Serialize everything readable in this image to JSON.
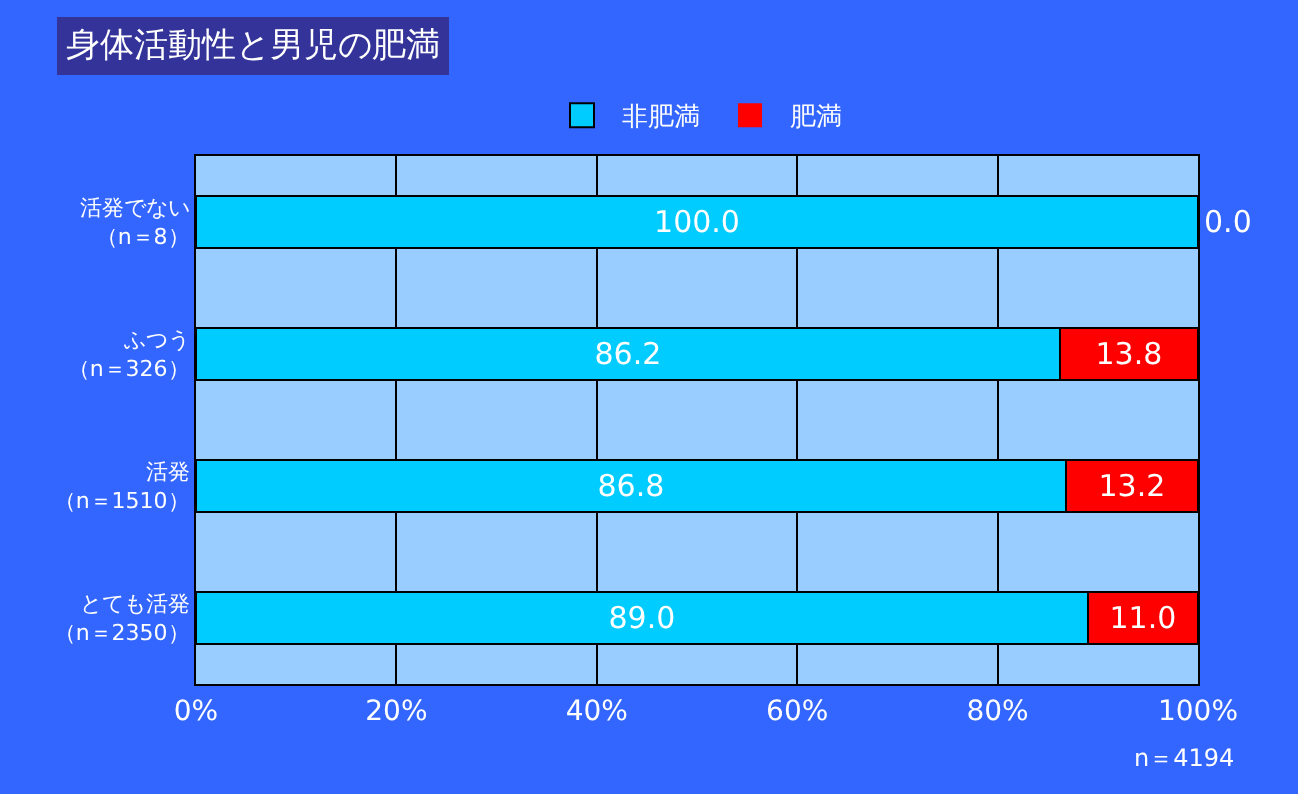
{
  "chart_data": {
    "type": "bar",
    "orientation": "horizontal",
    "stacked": true,
    "title": "身体活動性と男児の肥満",
    "categories": [
      "活発でない（n＝8）",
      "ふつう（n＝326）",
      "活発（n＝1510）",
      "とても活発（n＝2350）"
    ],
    "series": [
      {
        "name": "非肥満",
        "color": "#00ccff",
        "values": [
          100.0,
          86.2,
          86.8,
          89.0
        ],
        "value_labels": [
          "100.0",
          "86.2",
          "86.8",
          "89.0"
        ]
      },
      {
        "name": "肥満",
        "color": "#ff0000",
        "values": [
          0.0,
          13.8,
          13.2,
          11.0
        ],
        "value_labels": [
          "0.0",
          "13.8",
          "13.2",
          "11.0"
        ]
      }
    ],
    "xlim": [
      0,
      100
    ],
    "xticks": [
      {
        "value": 0,
        "label": "0%"
      },
      {
        "value": 20,
        "label": "20%"
      },
      {
        "value": 40,
        "label": "40%"
      },
      {
        "value": 60,
        "label": "60%"
      },
      {
        "value": 80,
        "label": "80%"
      },
      {
        "value": 100,
        "label": "100%"
      }
    ],
    "grid": "x",
    "legend": "top",
    "annotations": [
      "n＝4194"
    ]
  }
}
